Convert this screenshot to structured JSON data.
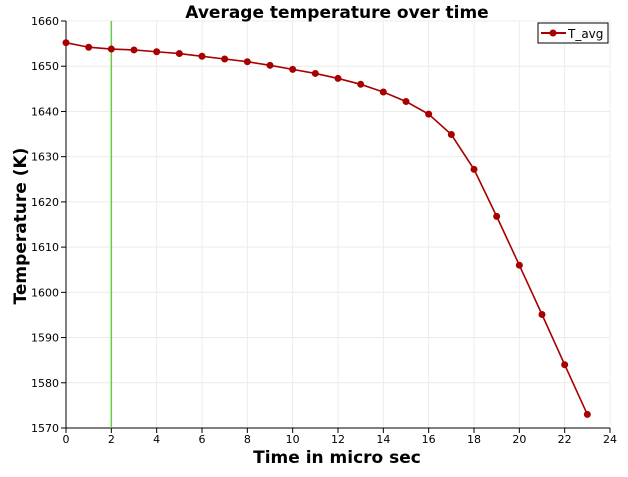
{
  "chart_data": {
    "type": "line",
    "title": "Average temperature over time",
    "xlabel": "Time in micro sec",
    "ylabel": "Temperature (K)",
    "xlim": [
      0,
      24
    ],
    "ylim": [
      1570,
      1660
    ],
    "xticks": [
      0,
      2,
      4,
      6,
      8,
      10,
      12,
      14,
      16,
      18,
      20,
      22,
      24
    ],
    "yticks": [
      1570,
      1580,
      1590,
      1600,
      1610,
      1620,
      1630,
      1640,
      1650,
      1660
    ],
    "grid": true,
    "legend_position": "top-right",
    "vertical_marker_x": 2,
    "series": [
      {
        "name": "T_avg",
        "color": "#a80000",
        "marker": "circle",
        "x": [
          0,
          1,
          2,
          3,
          4,
          5,
          6,
          7,
          8,
          9,
          10,
          11,
          12,
          13,
          14,
          15,
          16,
          17,
          18,
          19,
          20,
          21,
          22,
          23
        ],
        "values": [
          1655.2,
          1654.2,
          1653.8,
          1653.6,
          1653.2,
          1652.8,
          1652.2,
          1651.6,
          1651.0,
          1650.2,
          1649.3,
          1648.4,
          1647.3,
          1646.0,
          1644.3,
          1642.2,
          1639.4,
          1634.9,
          1627.2,
          1616.8,
          1606.0,
          1595.1,
          1584.0,
          1573.0
        ]
      }
    ],
    "marker_line_color": "#66cc44"
  }
}
